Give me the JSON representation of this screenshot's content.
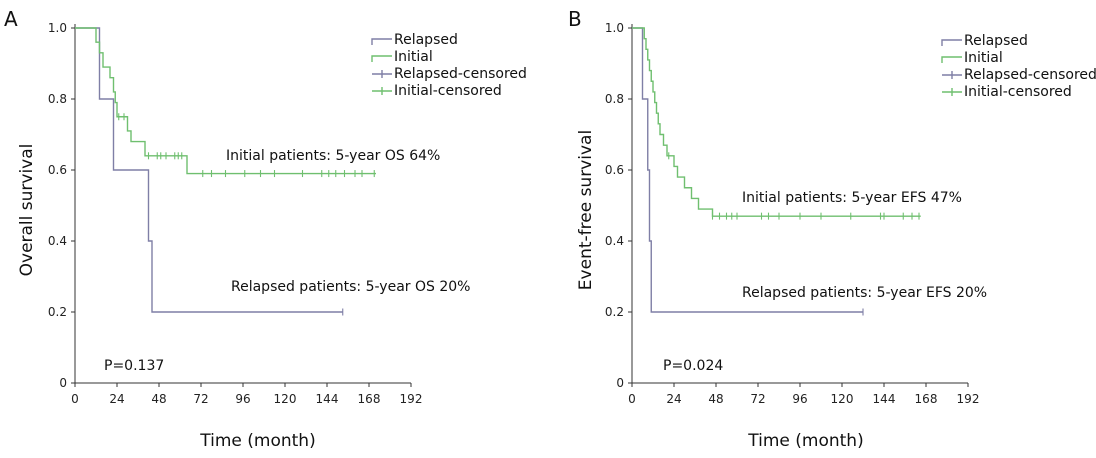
{
  "colors": {
    "relapsed": "#7f7fa6",
    "initial": "#6fbf6f",
    "axis": "#333333"
  },
  "chart_data": [
    {
      "type": "line",
      "subtype": "kaplan-meier",
      "panel_label": "A",
      "xlabel": "Time (month)",
      "ylabel": "Overall survival",
      "xlim": [
        0,
        192
      ],
      "ylim": [
        0,
        1.0
      ],
      "x_ticks": [
        0,
        24,
        48,
        72,
        96,
        120,
        144,
        168,
        192
      ],
      "y_ticks": [
        0,
        0.2,
        0.4,
        0.6,
        0.8,
        1.0
      ],
      "legend": [
        "Relapsed",
        "Initial",
        "Relapsed-censored",
        "Initial-censored"
      ],
      "legend_position": "top-right",
      "annotations": [
        "Initial patients: 5-year OS 64%",
        "Relapsed patients: 5-year OS 20%"
      ],
      "pvalue": "P=0.137",
      "series": [
        {
          "name": "Relapsed",
          "color_key": "relapsed",
          "steps": [
            [
              0,
              1.0
            ],
            [
              14,
              0.8
            ],
            [
              22,
              0.6
            ],
            [
              42,
              0.4
            ],
            [
              44,
              0.2
            ]
          ],
          "end_x": 153,
          "censored": [
            [
              153,
              0.2
            ]
          ]
        },
        {
          "name": "Initial",
          "color_key": "initial",
          "steps": [
            [
              0,
              1.0
            ],
            [
              12,
              0.96
            ],
            [
              14,
              0.93
            ],
            [
              16,
              0.89
            ],
            [
              20,
              0.86
            ],
            [
              22,
              0.82
            ],
            [
              23,
              0.79
            ],
            [
              24,
              0.75
            ],
            [
              30,
              0.71
            ],
            [
              32,
              0.68
            ],
            [
              40,
              0.64
            ],
            [
              64,
              0.59
            ]
          ],
          "end_x": 172,
          "censored": [
            [
              25,
              0.75
            ],
            [
              28,
              0.75
            ],
            [
              42,
              0.64
            ],
            [
              47,
              0.64
            ],
            [
              49,
              0.64
            ],
            [
              52,
              0.64
            ],
            [
              57,
              0.64
            ],
            [
              59,
              0.64
            ],
            [
              61,
              0.64
            ],
            [
              73,
              0.59
            ],
            [
              78,
              0.59
            ],
            [
              86,
              0.59
            ],
            [
              97,
              0.59
            ],
            [
              106,
              0.59
            ],
            [
              114,
              0.59
            ],
            [
              130,
              0.59
            ],
            [
              141,
              0.59
            ],
            [
              145,
              0.59
            ],
            [
              149,
              0.59
            ],
            [
              154,
              0.59
            ],
            [
              160,
              0.59
            ],
            [
              164,
              0.59
            ],
            [
              171,
              0.59
            ]
          ]
        }
      ]
    },
    {
      "type": "line",
      "subtype": "kaplan-meier",
      "panel_label": "B",
      "xlabel": "Time (month)",
      "ylabel": "Event-free survival",
      "xlim": [
        0,
        192
      ],
      "ylim": [
        0,
        1.0
      ],
      "x_ticks": [
        0,
        24,
        48,
        72,
        96,
        120,
        144,
        168,
        192
      ],
      "y_ticks": [
        0,
        0.2,
        0.4,
        0.6,
        0.8,
        1.0
      ],
      "legend": [
        "Relapsed",
        "Initial",
        "Relapsed-censored",
        "Initial-censored"
      ],
      "legend_position": "top-right",
      "annotations": [
        "Initial patients: 5-year EFS 47%",
        "Relapsed patients: 5-year EFS 20%"
      ],
      "pvalue": "P=0.024",
      "series": [
        {
          "name": "Relapsed",
          "color_key": "relapsed",
          "steps": [
            [
              0,
              1.0
            ],
            [
              6,
              0.8
            ],
            [
              9,
              0.6
            ],
            [
              10,
              0.4
            ],
            [
              11,
              0.2
            ]
          ],
          "end_x": 132,
          "censored": [
            [
              132,
              0.2
            ]
          ]
        },
        {
          "name": "Initial",
          "color_key": "initial",
          "steps": [
            [
              0,
              1.0
            ],
            [
              7,
              0.97
            ],
            [
              8,
              0.94
            ],
            [
              9,
              0.91
            ],
            [
              10,
              0.88
            ],
            [
              11,
              0.85
            ],
            [
              12,
              0.82
            ],
            [
              13,
              0.79
            ],
            [
              14,
              0.76
            ],
            [
              15,
              0.73
            ],
            [
              16,
              0.7
            ],
            [
              18,
              0.67
            ],
            [
              20,
              0.64
            ],
            [
              24,
              0.61
            ],
            [
              26,
              0.58
            ],
            [
              30,
              0.55
            ],
            [
              34,
              0.52
            ],
            [
              38,
              0.49
            ],
            [
              46,
              0.47
            ]
          ],
          "end_x": 165,
          "censored": [
            [
              21,
              0.64
            ],
            [
              46,
              0.47
            ],
            [
              50,
              0.47
            ],
            [
              54,
              0.47
            ],
            [
              57,
              0.47
            ],
            [
              60,
              0.47
            ],
            [
              74,
              0.47
            ],
            [
              78,
              0.47
            ],
            [
              84,
              0.47
            ],
            [
              96,
              0.47
            ],
            [
              108,
              0.47
            ],
            [
              125,
              0.47
            ],
            [
              142,
              0.47
            ],
            [
              144,
              0.47
            ],
            [
              155,
              0.47
            ],
            [
              160,
              0.47
            ],
            [
              164,
              0.47
            ]
          ]
        }
      ]
    }
  ]
}
